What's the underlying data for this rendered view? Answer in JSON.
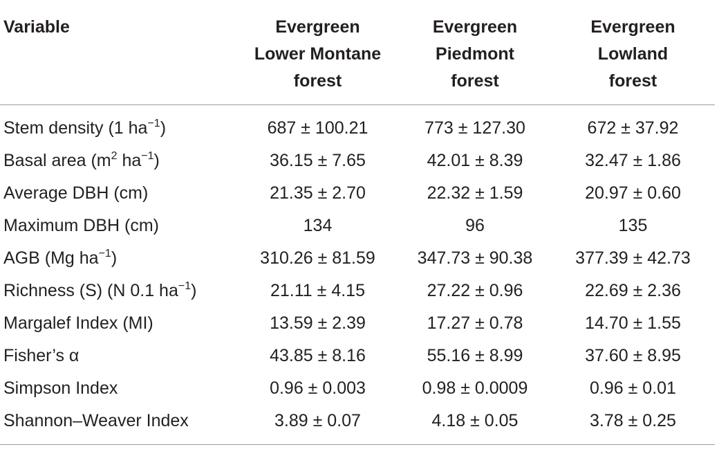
{
  "table": {
    "headers": [
      "Variable",
      "Evergreen Lower Montane forest",
      "Evergreen Piedmont forest",
      "Evergreen Lowland forest"
    ],
    "header_lines": [
      [
        "Variable"
      ],
      [
        "Evergreen",
        "Lower Montane",
        "forest"
      ],
      [
        "Evergreen",
        "Piedmont",
        "forest"
      ],
      [
        "Evergreen",
        "Lowland",
        "forest"
      ]
    ],
    "rows": [
      {
        "label": "Stem density (1 ha",
        "sup": "−1",
        "label_after": ")",
        "values": [
          "687 ± 100.21",
          "773 ± 127.30",
          "672 ± 37.92"
        ]
      },
      {
        "label": "Basal area (m",
        "sup": "2",
        "label_after": " ha",
        "sup2": "−1",
        "label_after2": ")",
        "values": [
          "36.15 ± 7.65",
          "42.01 ± 8.39",
          "32.47 ± 1.86"
        ]
      },
      {
        "label": "Average DBH (cm)",
        "values": [
          "21.35 ± 2.70",
          "22.32 ± 1.59",
          "20.97 ± 0.60"
        ]
      },
      {
        "label": "Maximum DBH (cm)",
        "values": [
          "134",
          "96",
          "135"
        ]
      },
      {
        "label": "AGB (Mg ha",
        "sup": "−1",
        "label_after": ")",
        "values": [
          "310.26 ± 81.59",
          "347.73 ± 90.38",
          "377.39 ± 42.73"
        ]
      },
      {
        "label": "Richness (S) (N 0.1 ha",
        "sup": "−1",
        "label_after": ")",
        "values": [
          "21.11 ± 4.15",
          "27.22 ± 0.96",
          "22.69 ± 2.36"
        ]
      },
      {
        "label": "Margalef Index (MI)",
        "values": [
          "13.59 ± 2.39",
          "17.27 ± 0.78",
          "14.70 ± 1.55"
        ]
      },
      {
        "label": "Fisher’s α",
        "values": [
          "43.85 ± 8.16",
          "55.16 ± 8.99",
          "37.60 ± 8.95"
        ]
      },
      {
        "label": "Simpson Index",
        "values": [
          "0.96 ± 0.003",
          "0.98 ± 0.0009",
          "0.96 ± 0.01"
        ]
      },
      {
        "label": "Shannon–Weaver Index",
        "values": [
          "3.89 ± 0.07",
          "4.18 ± 0.05",
          "3.78 ± 0.25"
        ]
      }
    ]
  }
}
